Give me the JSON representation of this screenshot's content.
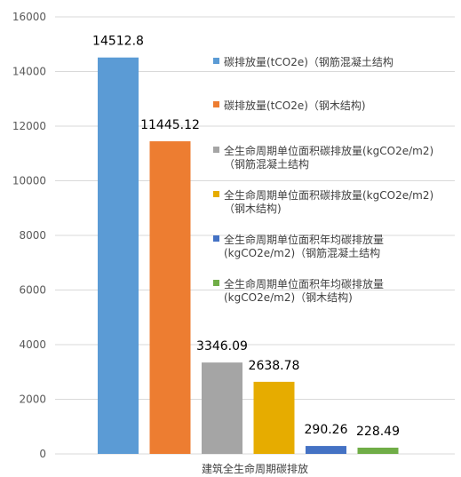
{
  "chart_data": {
    "type": "bar",
    "categories": [
      "建筑全生命周期碳排放"
    ],
    "series": [
      {
        "name": "碳排放量(tCO2e)（钢筋混凝土结构",
        "values": [
          14512.8
        ],
        "label": "14512.8",
        "color": "#5b9bd5"
      },
      {
        "name": "碳排放量(tCO2e)（钢木结构)",
        "values": [
          11445.12
        ],
        "label": "11445.12",
        "color": "#ed7d31"
      },
      {
        "name": "全生命周期单位面积碳排放量(kgCO2e/m2)（钢筋混凝土结构",
        "values": [
          3346.09
        ],
        "label": "3346.09",
        "color": "#a5a5a5"
      },
      {
        "name": "全生命周期单位面积碳排放量(kgCO2e/m2)（钢木结构)",
        "values": [
          2638.78
        ],
        "label": "2638.78",
        "color": "#e6ac00"
      },
      {
        "name": "全生命周期单位面积年均碳排放量(kgCO2e/m2)（钢筋混凝土结构",
        "values": [
          290.26
        ],
        "label": "290.26",
        "color": "#4472c4"
      },
      {
        "name": "全生命周期单位面积年均碳排放量(kgCO2e/m2)（钢木结构)",
        "values": [
          228.49
        ],
        "label": "228.49",
        "color": "#70ad47"
      }
    ],
    "legend_display": [
      [
        "碳排放量(tCO2e)（钢筋混凝土结构"
      ],
      [
        "碳排放量(tCO2e)（钢木结构)"
      ],
      [
        "全生命周期单位面积碳排放量(kgCO2e/m2)",
        "（钢筋混凝土结构"
      ],
      [
        "全生命周期单位面积碳排放量(kgCO2e/m2)",
        "（钢木结构)"
      ],
      [
        " 全生命周期单位面积年均碳排放量",
        "(kgCO2e/m2)（钢筋混凝土结构"
      ],
      [
        "全生命周期单位面积年均碳排放量",
        "(kgCO2e/m2)（钢木结构)"
      ]
    ],
    "y_ticks": [
      "0",
      "2000",
      "4000",
      "6000",
      "8000",
      "10000",
      "12000",
      "14000",
      "16000"
    ],
    "ylim": [
      0,
      16000
    ],
    "grid": true,
    "legend_position": "right"
  }
}
